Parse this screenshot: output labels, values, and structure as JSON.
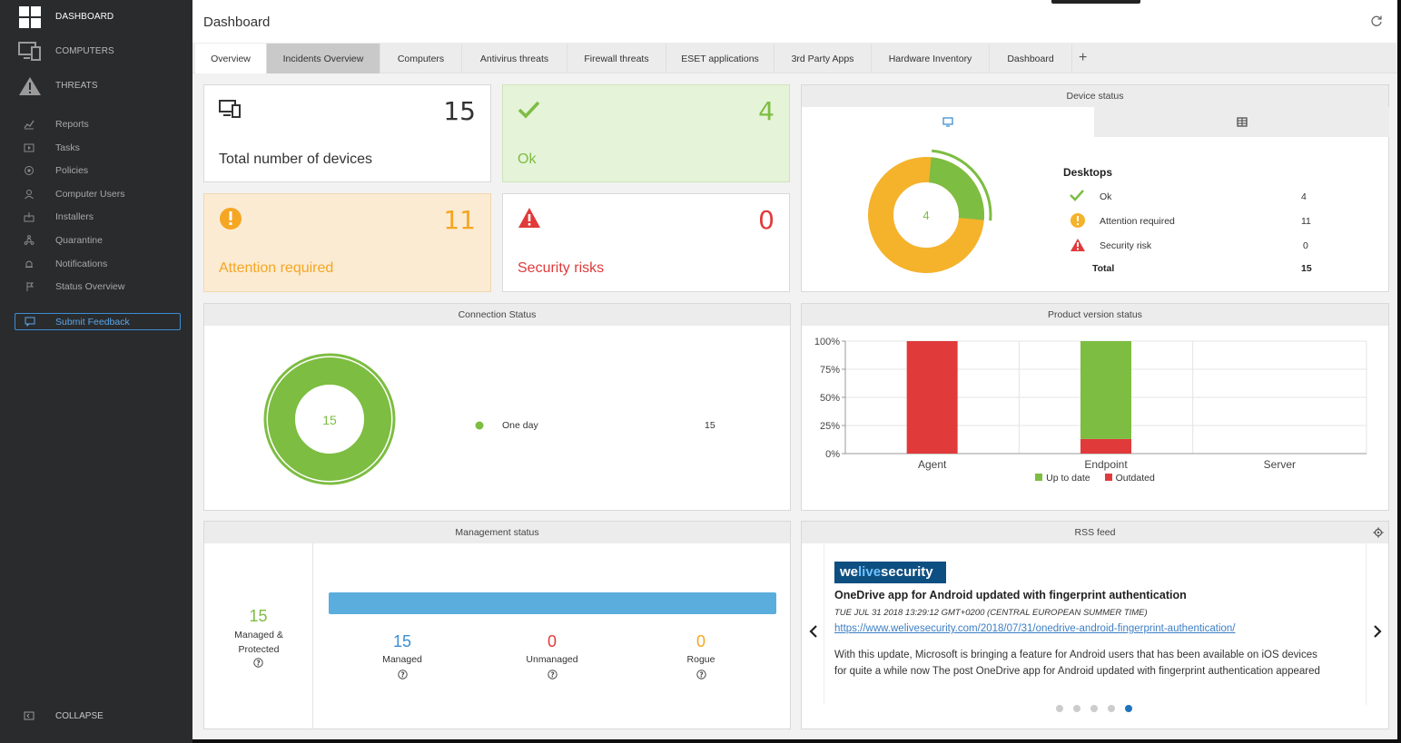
{
  "sidebar": {
    "main": [
      {
        "label": "DASHBOARD",
        "icon": "dashboard-grid-icon"
      },
      {
        "label": "COMPUTERS",
        "icon": "computers-icon"
      },
      {
        "label": "THREATS",
        "icon": "warning-icon"
      }
    ],
    "items": [
      {
        "label": "Reports",
        "icon": "chart-icon"
      },
      {
        "label": "Tasks",
        "icon": "tasks-icon"
      },
      {
        "label": "Policies",
        "icon": "policies-icon"
      },
      {
        "label": "Computer Users",
        "icon": "user-icon"
      },
      {
        "label": "Installers",
        "icon": "installer-icon"
      },
      {
        "label": "Quarantine",
        "icon": "quarantine-icon"
      },
      {
        "label": "Notifications",
        "icon": "notifications-icon"
      },
      {
        "label": "Status Overview",
        "icon": "status-icon"
      }
    ],
    "feedback": "Submit Feedback",
    "collapse": "COLLAPSE"
  },
  "header": {
    "title": "Dashboard"
  },
  "tabs": [
    "Overview",
    "Incidents Overview",
    "Computers",
    "Antivirus threats",
    "Firewall threats",
    "ESET applications",
    "3rd Party Apps",
    "Hardware Inventory",
    "Dashboard"
  ],
  "tab_add": "+",
  "kpis": {
    "total": {
      "value": "15",
      "label": "Total number of devices"
    },
    "ok": {
      "value": "4",
      "label": "Ok"
    },
    "attention": {
      "value": "11",
      "label": "Attention required"
    },
    "risks": {
      "value": "0",
      "label": "Security risks"
    }
  },
  "device_status": {
    "title": "Device status",
    "center": "4",
    "group": "Desktops",
    "rows": [
      {
        "label": "Ok",
        "value": "4"
      },
      {
        "label": "Attention required",
        "value": "11"
      },
      {
        "label": "Security risk",
        "value": "0"
      }
    ],
    "total_label": "Total",
    "total_value": "15"
  },
  "connection": {
    "title": "Connection Status",
    "center": "15",
    "legend": "One day",
    "value": "15"
  },
  "product_version": {
    "title": "Product version status"
  },
  "management": {
    "title": "Management status",
    "managed_protected_value": "15",
    "managed_protected_label": "Managed & Protected",
    "managed_value": "15",
    "managed_label": "Managed",
    "unmanaged_value": "0",
    "unmanaged_label": "Unmanaged",
    "rogue_value": "0",
    "rogue_label": "Rogue"
  },
  "rss": {
    "title": "RSS feed",
    "logo_a": "we",
    "logo_b": "live",
    "logo_c": "security",
    "headline": "OneDrive app for Android updated with fingerprint authentication",
    "date": "TUE JUL 31 2018 13:29:12 GMT+0200 (CENTRAL EUROPEAN SUMMER TIME)",
    "link": "https://www.welivesecurity.com/2018/07/31/onedrive-android-fingerprint-authentication/",
    "body1": "With this update, Microsoft is bringing a feature for Android users that has been available on iOS devices",
    "body2": "for quite a while now The post OneDrive app for Android updated with fingerprint authentication appeared",
    "pages": 5,
    "active_page": 5
  },
  "colors": {
    "green": "#7dbd42",
    "orange": "#f5a623",
    "red": "#e03a3a",
    "blue": "#5aaddc",
    "sidebar": "#2a2b2d"
  },
  "chart_data": {
    "type": "bar",
    "stacked": true,
    "categories": [
      "Agent",
      "Endpoint",
      "Server"
    ],
    "series": [
      {
        "name": "Up to date",
        "color": "#7dbd42",
        "values": [
          0,
          87,
          0
        ]
      },
      {
        "name": "Outdated",
        "color": "#e03a3a",
        "values": [
          100,
          13,
          0
        ]
      }
    ],
    "yticks": [
      "100%",
      "75%",
      "50%",
      "25%",
      "0%"
    ],
    "ylim": [
      0,
      100
    ],
    "legend": "bottom"
  }
}
